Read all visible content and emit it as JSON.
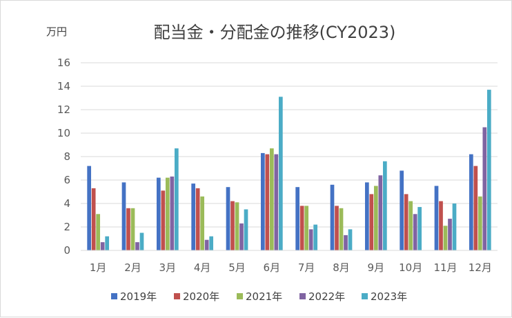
{
  "chart_data": {
    "type": "bar",
    "title": "配当金・分配金の推移(CY2023)",
    "ylabel": "万円",
    "xlabel": "",
    "ylim": [
      0,
      16
    ],
    "yticks": [
      0,
      2,
      4,
      6,
      8,
      10,
      12,
      14,
      16
    ],
    "grid": true,
    "legend_position": "bottom",
    "categories": [
      "1月",
      "2月",
      "3月",
      "4月",
      "5月",
      "6月",
      "7月",
      "8月",
      "9月",
      "10月",
      "11月",
      "12月"
    ],
    "series": [
      {
        "name": "2019年",
        "color": "#4472C4",
        "values": [
          7.2,
          5.8,
          6.2,
          5.7,
          5.4,
          8.3,
          5.4,
          5.6,
          5.8,
          6.8,
          5.5,
          8.2
        ]
      },
      {
        "name": "2020年",
        "color": "#C0504D",
        "values": [
          5.3,
          3.6,
          5.1,
          5.3,
          4.2,
          8.2,
          3.8,
          3.8,
          4.8,
          4.8,
          4.2,
          7.2
        ]
      },
      {
        "name": "2021年",
        "color": "#9BBB59",
        "values": [
          3.1,
          3.6,
          6.2,
          4.6,
          4.1,
          8.7,
          3.8,
          3.6,
          5.5,
          4.2,
          2.1,
          4.6
        ]
      },
      {
        "name": "2022年",
        "color": "#8064A2",
        "values": [
          0.7,
          0.7,
          6.3,
          0.9,
          2.3,
          8.2,
          1.8,
          1.3,
          6.4,
          3.1,
          2.7,
          10.5
        ]
      },
      {
        "name": "2023年",
        "color": "#4BACC6",
        "values": [
          1.2,
          1.5,
          8.7,
          1.2,
          3.5,
          13.1,
          2.2,
          1.8,
          7.6,
          3.7,
          4.0,
          13.7
        ]
      }
    ]
  }
}
